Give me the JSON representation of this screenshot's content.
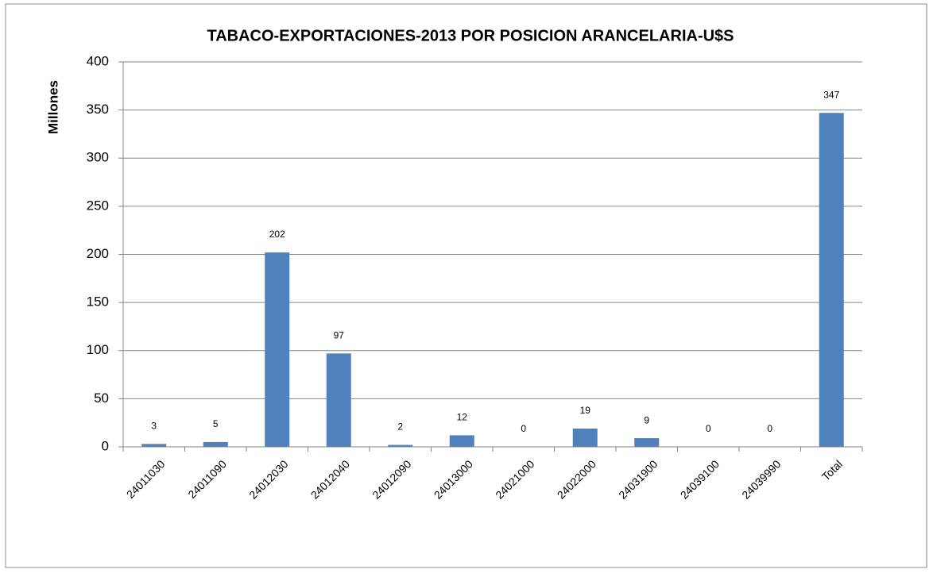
{
  "chart_data": {
    "type": "bar",
    "title": "TABACO-EXPORTACIONES-2013 POR POSICION ARANCELARIA-U$S",
    "y_label": "Millones",
    "categories": [
      "24011030",
      "24011090",
      "24012030",
      "24012040",
      "24012090",
      "24013000",
      "24021000",
      "24022000",
      "24031900",
      "24039100",
      "24039990",
      "Total"
    ],
    "values": [
      3,
      5,
      202,
      97,
      2,
      12,
      0,
      19,
      9,
      0,
      0,
      347
    ],
    "color": "#4f81bd",
    "ylim": [
      0,
      400
    ],
    "yticks": [
      0,
      50,
      100,
      150,
      200,
      250,
      300,
      350,
      400
    ],
    "grid": true
  }
}
